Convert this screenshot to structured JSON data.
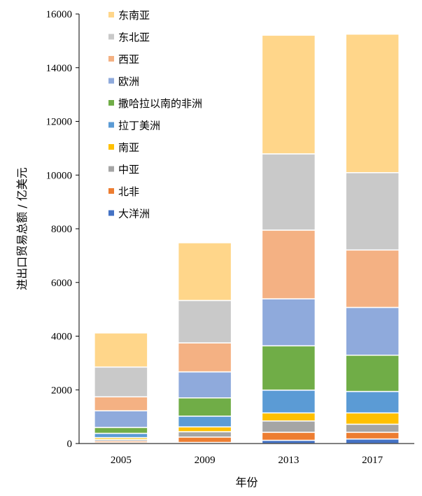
{
  "chart_data": {
    "type": "bar",
    "stacked": true,
    "xlabel": "年份",
    "ylabel": "进出口贸易总额 / 亿美元",
    "ylim": [
      0,
      16000
    ],
    "yticks": [
      0,
      2000,
      4000,
      6000,
      8000,
      10000,
      12000,
      14000,
      16000
    ],
    "categories": [
      "2005",
      "2009",
      "2013",
      "2017"
    ],
    "legend_position": "top-left, inside",
    "grid": false,
    "series": [
      {
        "name": "大洋洲",
        "color": "#4472C4",
        "values": [
          30,
          40,
          120,
          170
        ]
      },
      {
        "name": "北非",
        "color": "#ED7D31",
        "values": [
          60,
          200,
          300,
          250
        ]
      },
      {
        "name": "中亚",
        "color": "#A5A5A5",
        "values": [
          60,
          200,
          420,
          300
        ]
      },
      {
        "name": "南亚",
        "color": "#FFC000",
        "values": [
          70,
          180,
          300,
          420
        ]
      },
      {
        "name": "拉丁美洲",
        "color": "#5B9BD5",
        "values": [
          160,
          400,
          850,
          800
        ]
      },
      {
        "name": "撒哈拉以南的非洲",
        "color": "#70AD47",
        "values": [
          220,
          680,
          1650,
          1350
        ]
      },
      {
        "name": "欧洲",
        "color": "#8FAADC",
        "values": [
          620,
          970,
          1750,
          1780
        ]
      },
      {
        "name": "西亚",
        "color": "#F4B183",
        "values": [
          520,
          1080,
          2560,
          2140
        ]
      },
      {
        "name": "东北亚",
        "color": "#C9C9C9",
        "values": [
          1110,
          1580,
          2840,
          2880
        ]
      },
      {
        "name": "东南亚",
        "color": "#FFD68A",
        "values": [
          1270,
          2150,
          4420,
          5160
        ]
      }
    ]
  }
}
